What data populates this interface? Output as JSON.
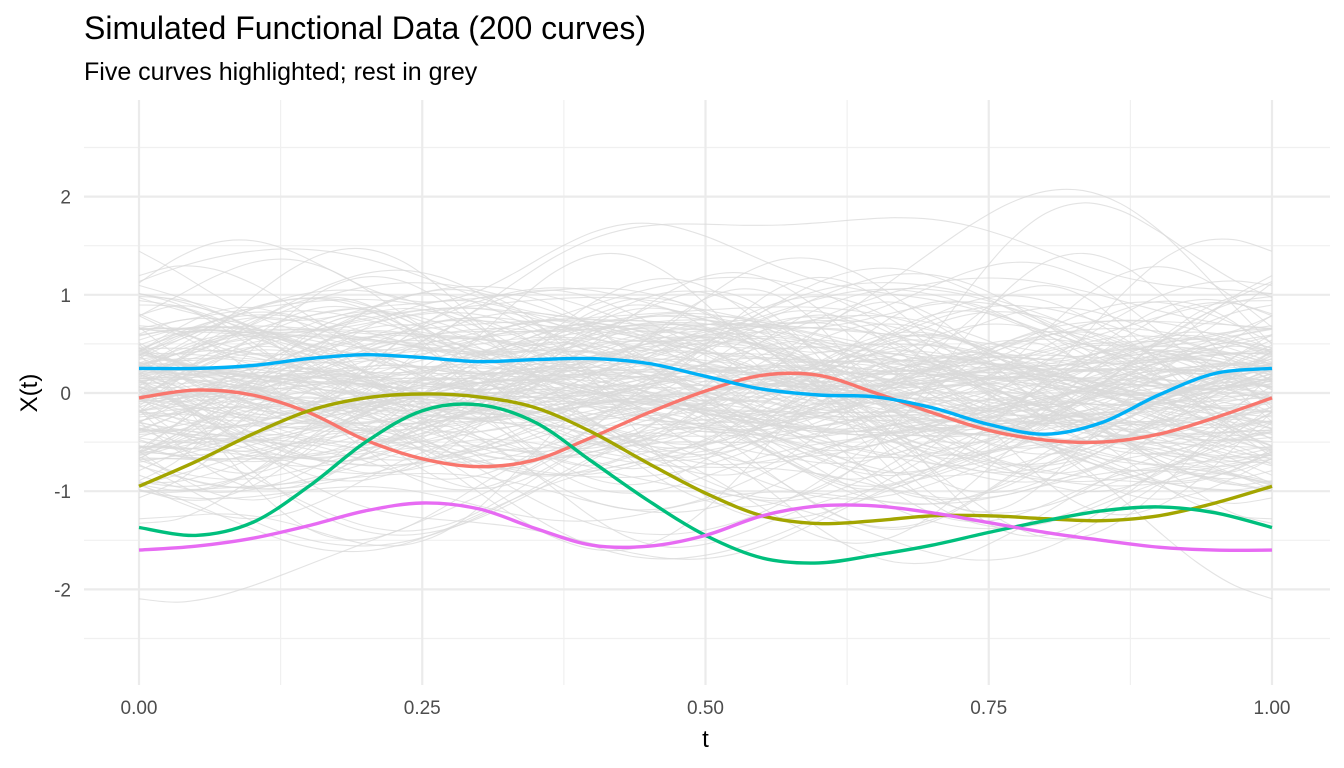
{
  "chart_data": {
    "type": "line",
    "title": "Simulated Functional Data (200 curves)",
    "subtitle": "Five curves highlighted; rest in grey",
    "xlabel": "t",
    "ylabel": "X(t)",
    "xlim": [
      0,
      1
    ],
    "ylim": [
      -2.9,
      3.0
    ],
    "x_ticks": [
      0,
      0.25,
      0.5,
      0.75,
      1
    ],
    "x_tick_labels": [
      "0.00",
      "0.25",
      "0.50",
      "0.75",
      "1.00"
    ],
    "y_ticks": [
      -2,
      -1,
      0,
      1,
      2
    ],
    "y_tick_labels": [
      "-2",
      "-1",
      "0",
      "1",
      "2"
    ],
    "grid": true,
    "legend": "none",
    "background_curve_count": 200,
    "background_color": "#d9d9d9",
    "series": [
      {
        "name": "highlight-red",
        "color": "#F8766D",
        "x": [
          0,
          0.05,
          0.1,
          0.15,
          0.2,
          0.25,
          0.3,
          0.35,
          0.4,
          0.45,
          0.5,
          0.55,
          0.6,
          0.65,
          0.7,
          0.75,
          0.8,
          0.85,
          0.9,
          0.95,
          1.0
        ],
        "values": [
          -0.05,
          0.03,
          -0.02,
          -0.2,
          -0.48,
          -0.67,
          -0.75,
          -0.68,
          -0.45,
          -0.2,
          0.02,
          0.18,
          0.18,
          0.0,
          -0.2,
          -0.38,
          -0.48,
          -0.5,
          -0.42,
          -0.25,
          -0.05
        ]
      },
      {
        "name": "highlight-olive",
        "color": "#A3A500",
        "x": [
          0,
          0.05,
          0.1,
          0.15,
          0.2,
          0.25,
          0.3,
          0.35,
          0.4,
          0.45,
          0.5,
          0.55,
          0.6,
          0.65,
          0.7,
          0.75,
          0.8,
          0.85,
          0.9,
          0.95,
          1.0
        ],
        "values": [
          -0.95,
          -0.7,
          -0.42,
          -0.18,
          -0.05,
          -0.01,
          -0.04,
          -0.15,
          -0.4,
          -0.72,
          -1.02,
          -1.25,
          -1.33,
          -1.3,
          -1.25,
          -1.25,
          -1.28,
          -1.3,
          -1.25,
          -1.12,
          -0.95
        ]
      },
      {
        "name": "highlight-green",
        "color": "#00BF7D",
        "x": [
          0,
          0.05,
          0.1,
          0.15,
          0.2,
          0.25,
          0.3,
          0.35,
          0.4,
          0.45,
          0.5,
          0.55,
          0.6,
          0.65,
          0.7,
          0.75,
          0.8,
          0.85,
          0.9,
          0.95,
          1.0
        ],
        "values": [
          -1.37,
          -1.45,
          -1.32,
          -0.95,
          -0.5,
          -0.18,
          -0.12,
          -0.3,
          -0.7,
          -1.1,
          -1.45,
          -1.68,
          -1.73,
          -1.65,
          -1.55,
          -1.42,
          -1.3,
          -1.2,
          -1.16,
          -1.22,
          -1.37
        ]
      },
      {
        "name": "highlight-blue",
        "color": "#00B0F6",
        "x": [
          0,
          0.05,
          0.1,
          0.15,
          0.2,
          0.25,
          0.3,
          0.35,
          0.4,
          0.45,
          0.5,
          0.55,
          0.6,
          0.65,
          0.7,
          0.75,
          0.8,
          0.85,
          0.9,
          0.95,
          1.0
        ],
        "values": [
          0.25,
          0.25,
          0.28,
          0.35,
          0.39,
          0.36,
          0.32,
          0.34,
          0.35,
          0.3,
          0.17,
          0.04,
          -0.02,
          -0.04,
          -0.15,
          -0.32,
          -0.42,
          -0.3,
          -0.02,
          0.2,
          0.25
        ]
      },
      {
        "name": "highlight-magenta",
        "color": "#E76BF3",
        "x": [
          0,
          0.05,
          0.1,
          0.15,
          0.2,
          0.25,
          0.3,
          0.35,
          0.4,
          0.45,
          0.5,
          0.55,
          0.6,
          0.65,
          0.7,
          0.75,
          0.8,
          0.85,
          0.9,
          0.95,
          1.0
        ],
        "values": [
          -1.6,
          -1.56,
          -1.48,
          -1.35,
          -1.2,
          -1.12,
          -1.18,
          -1.38,
          -1.55,
          -1.56,
          -1.45,
          -1.25,
          -1.15,
          -1.15,
          -1.22,
          -1.32,
          -1.42,
          -1.5,
          -1.57,
          -1.6,
          -1.6
        ]
      }
    ]
  }
}
